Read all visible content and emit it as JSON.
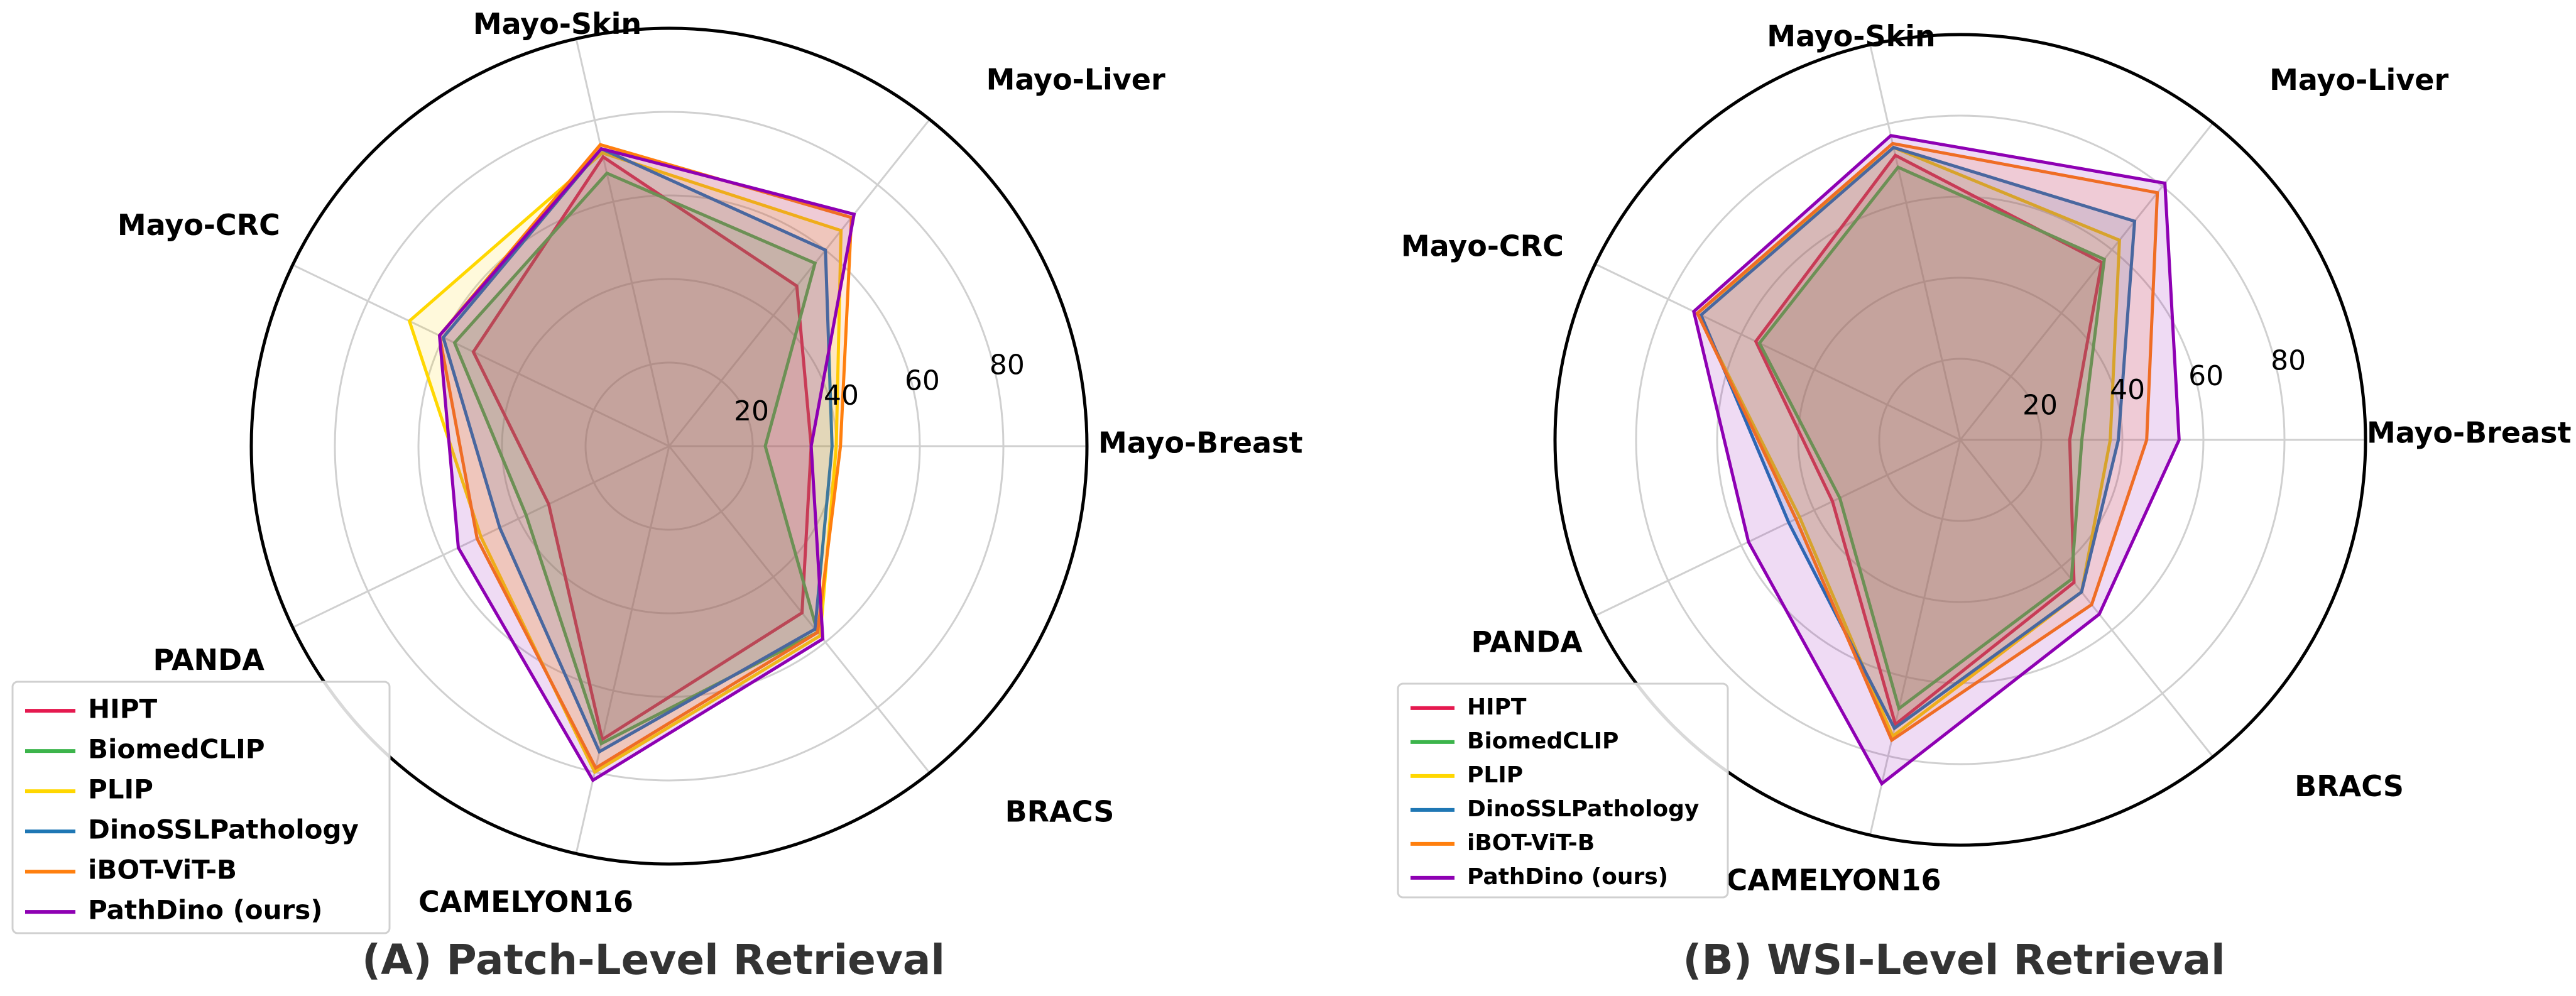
{
  "chart_data": [
    {
      "type": "radar",
      "title": "",
      "caption": "(A)  Patch-Level Retrieval",
      "axes": [
        "Mayo-Breast",
        "Mayo-Liver",
        "Mayo-Skin",
        "Mayo-CRC",
        "PANDA",
        "CAMELYON16",
        "BRACS"
      ],
      "radial_ticks": [
        "20",
        "40",
        "60",
        "80"
      ],
      "rlim": [
        0,
        100
      ],
      "grid": true,
      "legend_position": "bottom-left",
      "series": [
        {
          "name": "HIPT",
          "color": "#e5194f",
          "values": [
            34,
            49,
            71,
            52,
            32,
            72,
            51
          ]
        },
        {
          "name": "BiomedCLIP",
          "color": "#3cb44b",
          "values": [
            23,
            56,
            67,
            57,
            38,
            73,
            57
          ]
        },
        {
          "name": "PLIP",
          "color": "#ffd700",
          "values": [
            40,
            66,
            72,
            69,
            50,
            80,
            58
          ]
        },
        {
          "name": "DinoSSLPathology",
          "color": "#1f77b4",
          "values": [
            39,
            60,
            73,
            60,
            45,
            75,
            56
          ]
        },
        {
          "name": "iBOT-ViT-B",
          "color": "#ff7f0e",
          "values": [
            41,
            70,
            74,
            61,
            51,
            79,
            57
          ]
        },
        {
          "name": "PathDino (ours)",
          "color": "#8e00b3",
          "values": [
            34,
            71,
            73,
            61,
            56,
            82,
            59
          ]
        }
      ]
    },
    {
      "type": "radar",
      "title": "",
      "caption": "(B)  WSI-Level Retrieval",
      "axes": [
        "Mayo-Breast",
        "Mayo-Liver",
        "Mayo-Skin",
        "Mayo-CRC",
        "PANDA",
        "CAMELYON16",
        "BRACS"
      ],
      "radial_ticks": [
        "20",
        "40",
        "60",
        "80"
      ],
      "rlim": [
        0,
        100
      ],
      "grid": true,
      "legend_position": "bottom-left",
      "series": [
        {
          "name": "HIPT",
          "color": "#e5194f",
          "values": [
            27,
            56,
            72,
            56,
            35,
            72,
            45
          ]
        },
        {
          "name": "BiomedCLIP",
          "color": "#3cb44b",
          "values": [
            30,
            57,
            69,
            55,
            33,
            68,
            44
          ]
        },
        {
          "name": "PLIP",
          "color": "#ffd700",
          "values": [
            37,
            63,
            74,
            72,
            44,
            75,
            48
          ]
        },
        {
          "name": "DinoSSLPathology",
          "color": "#1f77b4",
          "values": [
            39,
            69,
            74,
            71,
            47,
            73,
            48
          ]
        },
        {
          "name": "iBOT-ViT-B",
          "color": "#ff7f0e",
          "values": [
            46,
            78,
            75,
            72,
            45,
            76,
            52
          ]
        },
        {
          "name": "PathDino (ours)",
          "color": "#8e00b3",
          "values": [
            54,
            81,
            77,
            73,
            58,
            87,
            55
          ]
        }
      ]
    }
  ]
}
